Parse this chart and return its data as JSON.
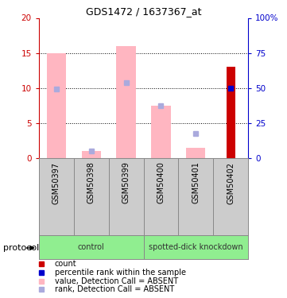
{
  "title": "GDS1472 / 1637367_at",
  "samples": [
    "GSM50397",
    "GSM50398",
    "GSM50399",
    "GSM50400",
    "GSM50401",
    "GSM50402"
  ],
  "pink_bar_heights": [
    15.0,
    1.0,
    16.0,
    7.5,
    1.5,
    0.0
  ],
  "blue_square_heights": [
    9.8,
    1.0,
    10.7,
    7.5,
    3.5,
    0.0
  ],
  "red_bar_heights": [
    0.0,
    0.0,
    0.0,
    0.0,
    0.0,
    13.0
  ],
  "blue_dot_heights": [
    0.0,
    0.0,
    0.0,
    0.0,
    0.0,
    10.0
  ],
  "ylim_left": [
    0,
    20
  ],
  "ylim_right": [
    0,
    100
  ],
  "yticks_left": [
    0,
    5,
    10,
    15,
    20
  ],
  "ytick_labels_left": [
    "0",
    "5",
    "10",
    "15",
    "20"
  ],
  "ytick_labels_right": [
    "0",
    "25",
    "50",
    "75",
    "100%"
  ],
  "group_boundaries": [
    [
      0,
      3,
      "control"
    ],
    [
      3,
      6,
      "spotted-dick knockdown"
    ]
  ],
  "protocol_label": "protocol",
  "pink_color": "#FFB6C1",
  "blue_square_color": "#AAAADD",
  "red_color": "#CC0000",
  "blue_dot_color": "#0000CC",
  "left_axis_color": "#CC0000",
  "right_axis_color": "#0000CC",
  "group_color": "#90EE90",
  "label_bg_color": "#CCCCCC",
  "legend_colors": [
    "#CC0000",
    "#0000CC",
    "#FFB6C1",
    "#AAAADD"
  ],
  "legend_labels": [
    "count",
    "percentile rank within the sample",
    "value, Detection Call = ABSENT",
    "rank, Detection Call = ABSENT"
  ]
}
